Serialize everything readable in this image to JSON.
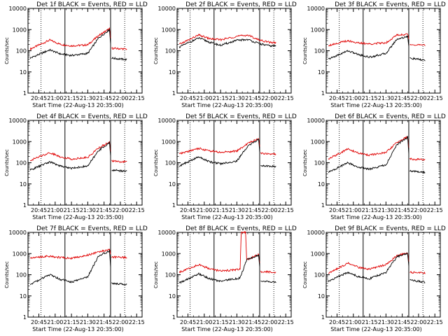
{
  "colors": {
    "events": "#000000",
    "lld": "#e00000",
    "axes": "#000000"
  },
  "chart_data": [
    {
      "type": "line",
      "title": "Det 1f  BLACK = Events, RED = LLD",
      "xlabel": "Start Time (22-Aug-13 20:35:00)",
      "ylabel": "Counts/sec",
      "xticks": [
        "20:45",
        "21:00",
        "21:15",
        "21:30",
        "21:45",
        "22:00",
        "22:15"
      ],
      "yticks": [
        "1",
        "10",
        "100",
        "1000",
        "10000"
      ],
      "ylim": [
        1,
        10000
      ],
      "yscale": "log",
      "dotted_times": [
        "20:47",
        "22:04"
      ],
      "solid_times": [
        "21:09",
        "21:51"
      ],
      "gaps": [
        [
          "21:51",
          "21:52"
        ]
      ],
      "series": [
        {
          "name": "LLD",
          "points": [
            [
              "20:37",
              120
            ],
            [
              "20:55",
              320
            ],
            [
              "21:05",
              200
            ],
            [
              "21:15",
              170
            ],
            [
              "21:30",
              190
            ],
            [
              "21:40",
              520
            ],
            [
              "21:50",
              1100
            ],
            [
              "21:52",
              130
            ],
            [
              "22:06",
              120
            ]
          ]
        },
        {
          "name": "Events",
          "points": [
            [
              "20:37",
              45
            ],
            [
              "20:55",
              110
            ],
            [
              "21:05",
              70
            ],
            [
              "21:15",
              60
            ],
            [
              "21:30",
              75
            ],
            [
              "21:40",
              400
            ],
            [
              "21:50",
              1000
            ],
            [
              "21:52",
              45
            ],
            [
              "22:06",
              38
            ]
          ]
        }
      ]
    },
    {
      "type": "line",
      "title": "Det 2f  BLACK = Events, RED = LLD",
      "xlabel": "Start Time (22-Aug-13 20:35:00)",
      "ylabel": "Counts/sec",
      "xticks": [
        "20:45",
        "21:00",
        "21:15",
        "21:30",
        "21:45",
        "22:00",
        "22:15"
      ],
      "yticks": [
        "1",
        "10",
        "100",
        "1000",
        "10000"
      ],
      "ylim": [
        1,
        10000
      ],
      "yscale": "log",
      "dotted_times": [
        "20:47",
        "22:04"
      ],
      "solid_times": [
        "21:09",
        "21:51"
      ],
      "gaps": [],
      "series": [
        {
          "name": "LLD",
          "points": [
            [
              "20:37",
              200
            ],
            [
              "20:55",
              550
            ],
            [
              "21:05",
              370
            ],
            [
              "21:15",
              330
            ],
            [
              "21:30",
              480
            ],
            [
              "21:40",
              550
            ],
            [
              "21:50",
              330
            ],
            [
              "22:00",
              250
            ],
            [
              "22:06",
              240
            ]
          ]
        },
        {
          "name": "Events",
          "points": [
            [
              "20:37",
              150
            ],
            [
              "20:55",
              400
            ],
            [
              "21:05",
              250
            ],
            [
              "21:15",
              180
            ],
            [
              "21:30",
              310
            ],
            [
              "21:40",
              340
            ],
            [
              "21:50",
              220
            ],
            [
              "22:00",
              170
            ],
            [
              "22:06",
              170
            ]
          ]
        }
      ]
    },
    {
      "type": "line",
      "title": "Det 3f  BLACK = Events, RED = LLD",
      "xlabel": "Start Time (22-Aug-13 20:35:00)",
      "ylabel": "Counts/sec",
      "xticks": [
        "20:45",
        "21:00",
        "21:15",
        "21:30",
        "21:45",
        "22:00",
        "22:15"
      ],
      "yticks": [
        "1",
        "10",
        "100",
        "1000",
        "10000"
      ],
      "ylim": [
        1,
        10000
      ],
      "yscale": "log",
      "dotted_times": [
        "20:47",
        "22:04"
      ],
      "solid_times": [
        "21:09",
        "21:51"
      ],
      "gaps": [
        [
          "21:51",
          "21:52"
        ]
      ],
      "series": [
        {
          "name": "LLD",
          "points": [
            [
              "20:37",
              180
            ],
            [
              "20:55",
              300
            ],
            [
              "21:05",
              230
            ],
            [
              "21:15",
              210
            ],
            [
              "21:30",
              240
            ],
            [
              "21:40",
              550
            ],
            [
              "21:50",
              600
            ],
            [
              "21:52",
              200
            ],
            [
              "22:06",
              180
            ]
          ]
        },
        {
          "name": "Events",
          "points": [
            [
              "20:37",
              40
            ],
            [
              "20:55",
              100
            ],
            [
              "21:05",
              65
            ],
            [
              "21:15",
              50
            ],
            [
              "21:30",
              75
            ],
            [
              "21:40",
              350
            ],
            [
              "21:50",
              480
            ],
            [
              "21:52",
              45
            ],
            [
              "22:06",
              35
            ]
          ]
        }
      ]
    },
    {
      "type": "line",
      "title": "Det 4f  BLACK = Events, RED = LLD",
      "xlabel": "Start Time (22-Aug-13 20:35:00)",
      "ylabel": "Counts/sec",
      "xticks": [
        "20:45",
        "21:00",
        "21:15",
        "21:30",
        "21:45",
        "22:00",
        "22:15"
      ],
      "yticks": [
        "1",
        "10",
        "100",
        "1000",
        "10000"
      ],
      "ylim": [
        1,
        10000
      ],
      "yscale": "log",
      "dotted_times": [
        "20:47",
        "22:04"
      ],
      "solid_times": [
        "21:09",
        "21:51"
      ],
      "gaps": [
        [
          "21:51",
          "21:52"
        ]
      ],
      "series": [
        {
          "name": "LLD",
          "points": [
            [
              "20:37",
              130
            ],
            [
              "20:55",
              300
            ],
            [
              "21:05",
              190
            ],
            [
              "21:15",
              150
            ],
            [
              "21:30",
              180
            ],
            [
              "21:40",
              500
            ],
            [
              "21:50",
              950
            ],
            [
              "21:52",
              120
            ],
            [
              "22:06",
              110
            ]
          ]
        },
        {
          "name": "Events",
          "points": [
            [
              "20:37",
              45
            ],
            [
              "20:55",
              110
            ],
            [
              "21:05",
              70
            ],
            [
              "21:15",
              55
            ],
            [
              "21:30",
              70
            ],
            [
              "21:40",
              380
            ],
            [
              "21:50",
              880
            ],
            [
              "21:52",
              45
            ],
            [
              "22:06",
              40
            ]
          ]
        }
      ]
    },
    {
      "type": "line",
      "title": "Det 5f  BLACK = Events, RED = LLD",
      "xlabel": "Start Time (22-Aug-13 20:35:00)",
      "ylabel": "Counts/sec",
      "xticks": [
        "20:45",
        "21:00",
        "21:15",
        "21:30",
        "21:45",
        "22:00",
        "22:15"
      ],
      "yticks": [
        "1",
        "10",
        "100",
        "1000",
        "10000"
      ],
      "ylim": [
        1,
        10000
      ],
      "yscale": "log",
      "dotted_times": [
        "20:47",
        "22:04"
      ],
      "solid_times": [
        "21:09",
        "21:51"
      ],
      "gaps": [
        [
          "21:51",
          "21:52"
        ]
      ],
      "series": [
        {
          "name": "LLD",
          "points": [
            [
              "20:37",
              260
            ],
            [
              "20:55",
              480
            ],
            [
              "21:05",
              360
            ],
            [
              "21:15",
              310
            ],
            [
              "21:30",
              360
            ],
            [
              "21:40",
              800
            ],
            [
              "21:50",
              1400
            ],
            [
              "21:52",
              280
            ],
            [
              "22:06",
              260
            ]
          ]
        },
        {
          "name": "Events",
          "points": [
            [
              "20:37",
              70
            ],
            [
              "20:55",
              190
            ],
            [
              "21:05",
              110
            ],
            [
              "21:15",
              90
            ],
            [
              "21:30",
              120
            ],
            [
              "21:40",
              600
            ],
            [
              "21:50",
              1300
            ],
            [
              "21:52",
              75
            ],
            [
              "22:06",
              65
            ]
          ]
        }
      ]
    },
    {
      "type": "line",
      "title": "Det 6f  BLACK = Events, RED = LLD",
      "xlabel": "Start Time (22-Aug-13 20:35:00)",
      "ylabel": "Counts/sec",
      "xticks": [
        "20:45",
        "21:00",
        "21:15",
        "21:30",
        "21:45",
        "22:00",
        "22:15"
      ],
      "yticks": [
        "1",
        "10",
        "100",
        "1000",
        "10000"
      ],
      "ylim": [
        1,
        10000
      ],
      "yscale": "log",
      "dotted_times": [
        "20:47",
        "22:04"
      ],
      "solid_times": [
        "21:09",
        "21:51"
      ],
      "gaps": [
        [
          "21:51",
          "21:52"
        ]
      ],
      "series": [
        {
          "name": "LLD",
          "points": [
            [
              "20:37",
              150
            ],
            [
              "20:55",
              450
            ],
            [
              "21:05",
              280
            ],
            [
              "21:15",
              230
            ],
            [
              "21:30",
              300
            ],
            [
              "21:40",
              900
            ],
            [
              "21:50",
              1700
            ],
            [
              "21:52",
              150
            ],
            [
              "22:06",
              140
            ]
          ]
        },
        {
          "name": "Events",
          "points": [
            [
              "20:37",
              35
            ],
            [
              "20:55",
              100
            ],
            [
              "21:05",
              60
            ],
            [
              "21:15",
              50
            ],
            [
              "21:30",
              80
            ],
            [
              "21:40",
              700
            ],
            [
              "21:50",
              1600
            ],
            [
              "21:52",
              40
            ],
            [
              "22:06",
              35
            ]
          ]
        }
      ]
    },
    {
      "type": "line",
      "title": "Det 7f  BLACK = Events, RED = LLD",
      "xlabel": "Start Time (22-Aug-13 20:35:00)",
      "ylabel": "Counts/sec",
      "xticks": [
        "20:45",
        "21:00",
        "21:15",
        "21:30",
        "21:45",
        "22:00",
        "22:15"
      ],
      "yticks": [
        "1",
        "10",
        "100",
        "1000",
        "10000"
      ],
      "ylim": [
        1,
        10000
      ],
      "yscale": "log",
      "dotted_times": [
        "20:47",
        "22:04"
      ],
      "solid_times": [
        "21:09",
        "21:51"
      ],
      "gaps": [
        [
          "21:51",
          "21:52"
        ]
      ],
      "series": [
        {
          "name": "LLD",
          "points": [
            [
              "20:37",
              650
            ],
            [
              "20:55",
              750
            ],
            [
              "21:05",
              650
            ],
            [
              "21:15",
              600
            ],
            [
              "21:30",
              850
            ],
            [
              "21:40",
              1200
            ],
            [
              "21:50",
              1500
            ],
            [
              "21:52",
              700
            ],
            [
              "22:06",
              650
            ]
          ]
        },
        {
          "name": "Events",
          "points": [
            [
              "20:37",
              35
            ],
            [
              "20:55",
              100
            ],
            [
              "21:05",
              60
            ],
            [
              "21:15",
              45
            ],
            [
              "21:30",
              80
            ],
            [
              "21:40",
              800
            ],
            [
              "21:50",
              1300
            ],
            [
              "21:52",
              40
            ],
            [
              "22:06",
              35
            ]
          ]
        }
      ]
    },
    {
      "type": "line",
      "title": "Det 8f  BLACK = Events, RED = LLD",
      "xlabel": "Start Time (22-Aug-13 20:35:00)",
      "ylabel": "Counts/sec",
      "xticks": [
        "20:45",
        "21:00",
        "21:15",
        "21:30",
        "21:45",
        "22:00",
        "22:15"
      ],
      "yticks": [
        "1",
        "10",
        "100",
        "1000",
        "10000"
      ],
      "ylim": [
        1,
        10000
      ],
      "yscale": "log",
      "dotted_times": [
        "20:47",
        "22:04"
      ],
      "solid_times": [
        "21:09",
        "21:51"
      ],
      "gaps": [
        [
          "21:51",
          "21:52"
        ]
      ],
      "series": [
        {
          "name": "LLD",
          "points": [
            [
              "20:37",
              130
            ],
            [
              "20:55",
              300
            ],
            [
              "21:05",
              190
            ],
            [
              "21:15",
              150
            ],
            [
              "21:33",
              180
            ],
            [
              "21:34",
              10000
            ],
            [
              "21:38",
              10000
            ],
            [
              "21:39",
              500
            ],
            [
              "21:50",
              900
            ],
            [
              "21:52",
              140
            ],
            [
              "22:06",
              130
            ]
          ]
        },
        {
          "name": "Events",
          "points": [
            [
              "20:37",
              40
            ],
            [
              "20:55",
              110
            ],
            [
              "21:05",
              65
            ],
            [
              "21:15",
              50
            ],
            [
              "21:33",
              70
            ],
            [
              "21:39",
              500
            ],
            [
              "21:50",
              850
            ],
            [
              "21:52",
              50
            ],
            [
              "22:06",
              45
            ]
          ]
        }
      ]
    },
    {
      "type": "line",
      "title": "Det 9f  BLACK = Events, RED = LLD",
      "xlabel": "Start Time (22-Aug-13 20:35:00)",
      "ylabel": "Counts/sec",
      "xticks": [
        "20:45",
        "21:00",
        "21:15",
        "21:30",
        "21:45",
        "22:00",
        "22:15"
      ],
      "yticks": [
        "1",
        "10",
        "100",
        "1000",
        "10000"
      ],
      "ylim": [
        1,
        10000
      ],
      "yscale": "log",
      "dotted_times": [
        "20:47",
        "22:04"
      ],
      "solid_times": [
        "21:09",
        "21:51"
      ],
      "gaps": [
        [
          "21:51",
          "21:52"
        ]
      ],
      "series": [
        {
          "name": "LLD",
          "points": [
            [
              "20:37",
              120
            ],
            [
              "20:55",
              350
            ],
            [
              "21:05",
              220
            ],
            [
              "21:15",
              180
            ],
            [
              "21:30",
              300
            ],
            [
              "21:40",
              800
            ],
            [
              "21:50",
              1100
            ],
            [
              "21:52",
              130
            ],
            [
              "22:06",
              120
            ]
          ]
        },
        {
          "name": "Events",
          "points": [
            [
              "20:37",
              50
            ],
            [
              "20:55",
              130
            ],
            [
              "21:05",
              80
            ],
            [
              "21:15",
              65
            ],
            [
              "21:30",
              130
            ],
            [
              "21:40",
              700
            ],
            [
              "21:50",
              1000
            ],
            [
              "21:52",
              55
            ],
            [
              "22:06",
              45
            ]
          ]
        }
      ]
    }
  ]
}
